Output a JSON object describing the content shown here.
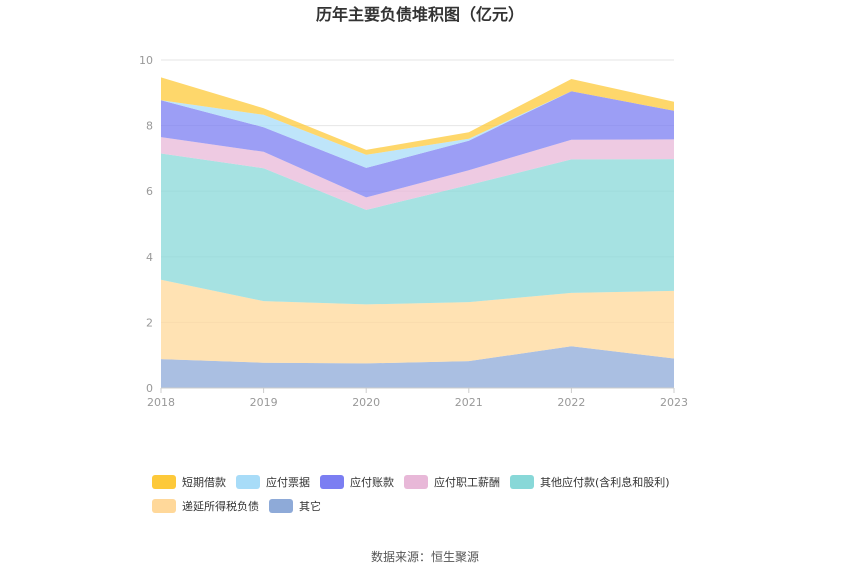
{
  "chart_data": {
    "type": "area",
    "stacked": true,
    "title": "历年主要负债堆积图（亿元）",
    "x": [
      "2018",
      "2019",
      "2020",
      "2021",
      "2022",
      "2023"
    ],
    "ylim": [
      0,
      10
    ],
    "yticks": [
      "0",
      "2",
      "4",
      "6",
      "8",
      "10"
    ],
    "grid": true,
    "legend_position": "bottom",
    "series": [
      {
        "name": "其它",
        "color": "#8eaad8",
        "values": [
          0.88,
          0.77,
          0.75,
          0.82,
          1.27,
          0.9
        ]
      },
      {
        "name": "递延所得税负债",
        "color": "#ffd89a",
        "values": [
          2.42,
          1.88,
          1.8,
          1.8,
          1.63,
          2.06
        ]
      },
      {
        "name": "其他应付款(含利息和股利)",
        "color": "#88d8d8",
        "values": [
          3.85,
          4.05,
          2.88,
          3.57,
          4.07,
          4.02
        ]
      },
      {
        "name": "应付职工薪酬",
        "color": "#e8b8d8",
        "values": [
          0.5,
          0.5,
          0.38,
          0.45,
          0.6,
          0.6
        ]
      },
      {
        "name": "应付账款",
        "color": "#7b7ef2",
        "values": [
          1.12,
          0.75,
          0.9,
          0.9,
          1.48,
          0.87
        ]
      },
      {
        "name": "应付票据",
        "color": "#a8dcf8",
        "values": [
          0.0,
          0.38,
          0.4,
          0.06,
          0.0,
          0.0
        ]
      },
      {
        "name": "短期借款",
        "color": "#fdc93a",
        "values": [
          0.7,
          0.2,
          0.15,
          0.2,
          0.37,
          0.28
        ]
      }
    ],
    "legend_order": [
      "短期借款",
      "应付票据",
      "应付账款",
      "应付职工薪酬",
      "其他应付款(含利息和股利)",
      "递延所得税负债",
      "其它"
    ]
  },
  "source_label": "数据来源：",
  "source_name": "恒生聚源"
}
